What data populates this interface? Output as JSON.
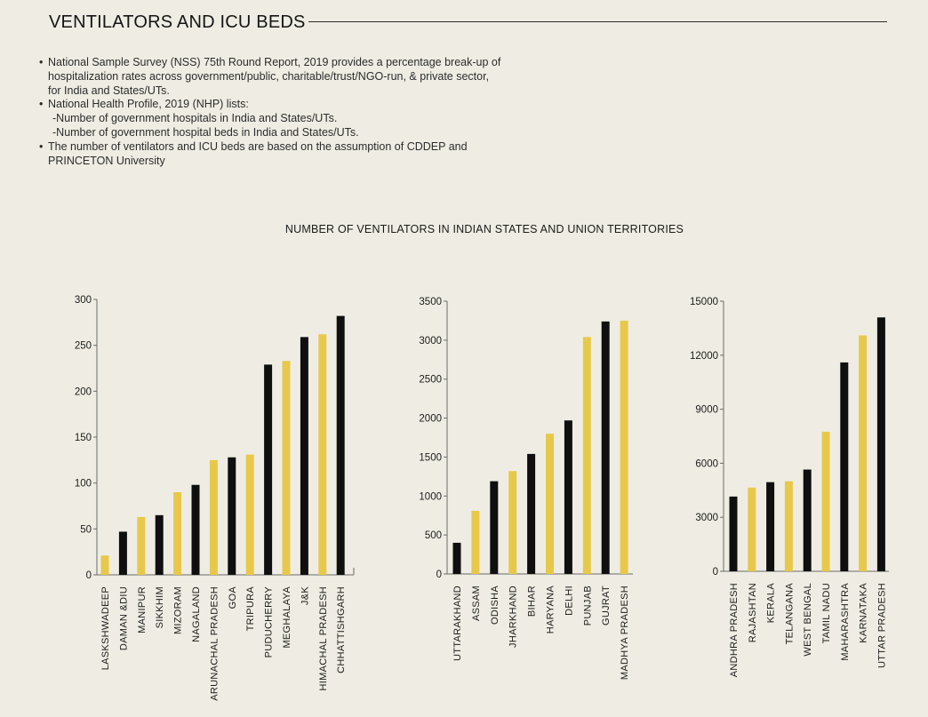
{
  "page": {
    "title": "VENTILATORS AND ICU BEDS",
    "notes": [
      {
        "bullet": "•",
        "text": "National Sample Survey (NSS) 75th Round Report, 2019 provides a percentage break-up of hospitalization rates across government/public, charitable/trust/NGO-run, & private sector, for India and States/UTs."
      },
      {
        "bullet": "•",
        "text": "National Health Profile, 2019 (NHP) lists:"
      },
      {
        "bullet": "",
        "text": "-Number of government hospitals in India and States/UTs."
      },
      {
        "bullet": "",
        "text": "-Number of government hospital beds in India and States/UTs."
      },
      {
        "bullet": "•",
        "text": "The number of ventilators and ICU beds are based on the assumption of CDDEP and PRINCETON University"
      }
    ],
    "chart_heading": "NUMBER OF VENTILATORS IN INDIAN STATES AND UNION TERRITORIES"
  },
  "colors": {
    "yellow": "#e8c84a",
    "black": "#0f0f0f",
    "axis": "#6a6a6a"
  },
  "chart_data": [
    {
      "type": "bar",
      "categories": [
        "LASKSHWADEEP",
        "DAMAN &DIU",
        "MANIPUR",
        "SIKKHIM",
        "MIZORAM",
        "NAGALAND",
        "ARUNACHAL PRADESH",
        "GOA",
        "TRIPURA",
        "PUDUCHERRY",
        "MEGHALAYA",
        "J&K",
        "HIMACHAL PRADESH",
        "CHHATTISHGARH"
      ],
      "values": [
        21,
        47,
        63,
        65,
        90,
        98,
        125,
        128,
        131,
        229,
        233,
        259,
        262,
        282
      ],
      "colors": [
        "yellow",
        "black",
        "yellow",
        "black",
        "yellow",
        "black",
        "yellow",
        "black",
        "yellow",
        "black",
        "yellow",
        "black",
        "yellow",
        "black"
      ],
      "ylim": [
        0,
        300
      ],
      "yticks": [
        0,
        50,
        100,
        150,
        200,
        250,
        300
      ],
      "ytick_labels": [
        "0",
        "50",
        "100",
        "150",
        "200",
        "250",
        "300"
      ]
    },
    {
      "type": "bar",
      "categories": [
        "UTTARAKHAND",
        "ASSAM",
        "ODISHA",
        "JHARKHAND",
        "BIHAR",
        "HARYANA",
        "DELHI",
        "PUNJAB",
        "GUJRAT",
        "MADHYA PRADESH"
      ],
      "values": [
        400,
        810,
        1190,
        1320,
        1540,
        1800,
        1970,
        3040,
        3240,
        3250
      ],
      "colors": [
        "black",
        "yellow",
        "black",
        "yellow",
        "black",
        "yellow",
        "black",
        "yellow",
        "black",
        "yellow"
      ],
      "ylim": [
        0,
        3500
      ],
      "yticks": [
        0,
        500,
        1000,
        1500,
        2000,
        2500,
        3000,
        3500
      ],
      "ytick_labels": [
        "0",
        "500",
        "1000",
        "1500",
        "2000",
        "2500",
        "3000",
        "3500"
      ]
    },
    {
      "type": "bar",
      "categories": [
        "ANDHRA PRADESH",
        "RAJASHTAN",
        "KERALA",
        "TELANGANA",
        "WEST BENGAL",
        "TAMIL NADU",
        "MAHARASHTRA",
        "KARNATAKA",
        "UTTAR PRADESH"
      ],
      "values": [
        4150,
        4650,
        4950,
        5000,
        5650,
        7750,
        11600,
        13100,
        14100
      ],
      "colors": [
        "black",
        "yellow",
        "black",
        "yellow",
        "black",
        "yellow",
        "black",
        "yellow",
        "black"
      ],
      "ylim": [
        0,
        15000
      ],
      "yticks": [
        0,
        3000,
        6000,
        9000,
        12000,
        15000
      ],
      "ytick_labels": [
        "0",
        "3000",
        "6000",
        "9000",
        "12000",
        "15000"
      ]
    }
  ]
}
